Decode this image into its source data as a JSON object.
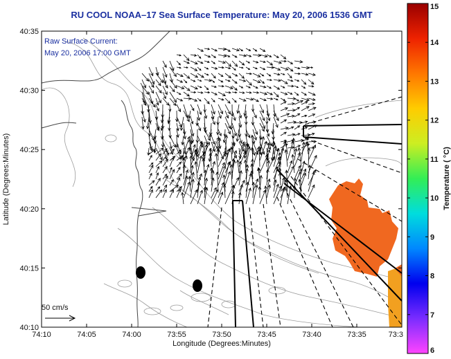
{
  "title": "RU COOL  NOAA–17  Sea Surface Temperature:  May 20, 2006 1536 GMT",
  "legend_lines": [
    "Raw Surface Current:",
    "May 20, 2006 17:00 GMT"
  ],
  "scale_label": "50 cm/s",
  "x_axis": {
    "label": "Longitude (Degrees:Minutes)",
    "ticks": [
      "74:10",
      "74:05",
      "74:00",
      "73:55",
      "73:50",
      "73:45",
      "73:40",
      "73:35",
      "73:3"
    ]
  },
  "y_axis": {
    "label": "Latitude (Degrees:Minutes)",
    "ticks": [
      "40:35",
      "40:30",
      "40:25",
      "40:20",
      "40:15",
      "40:10"
    ]
  },
  "colorbar": {
    "label": "Temperature ( °C)",
    "ticks": [
      "15",
      "14",
      "13",
      "12",
      "11",
      "10",
      "9",
      "8",
      "7",
      "6"
    ],
    "colors": [
      "#ff44ff",
      "#7a2cff",
      "#0000ee",
      "#0088ff",
      "#00dddd",
      "#33ee55",
      "#ccee22",
      "#ffcc00",
      "#ff7700",
      "#ee2200",
      "#990000"
    ]
  },
  "sst_color": "#f06820"
}
